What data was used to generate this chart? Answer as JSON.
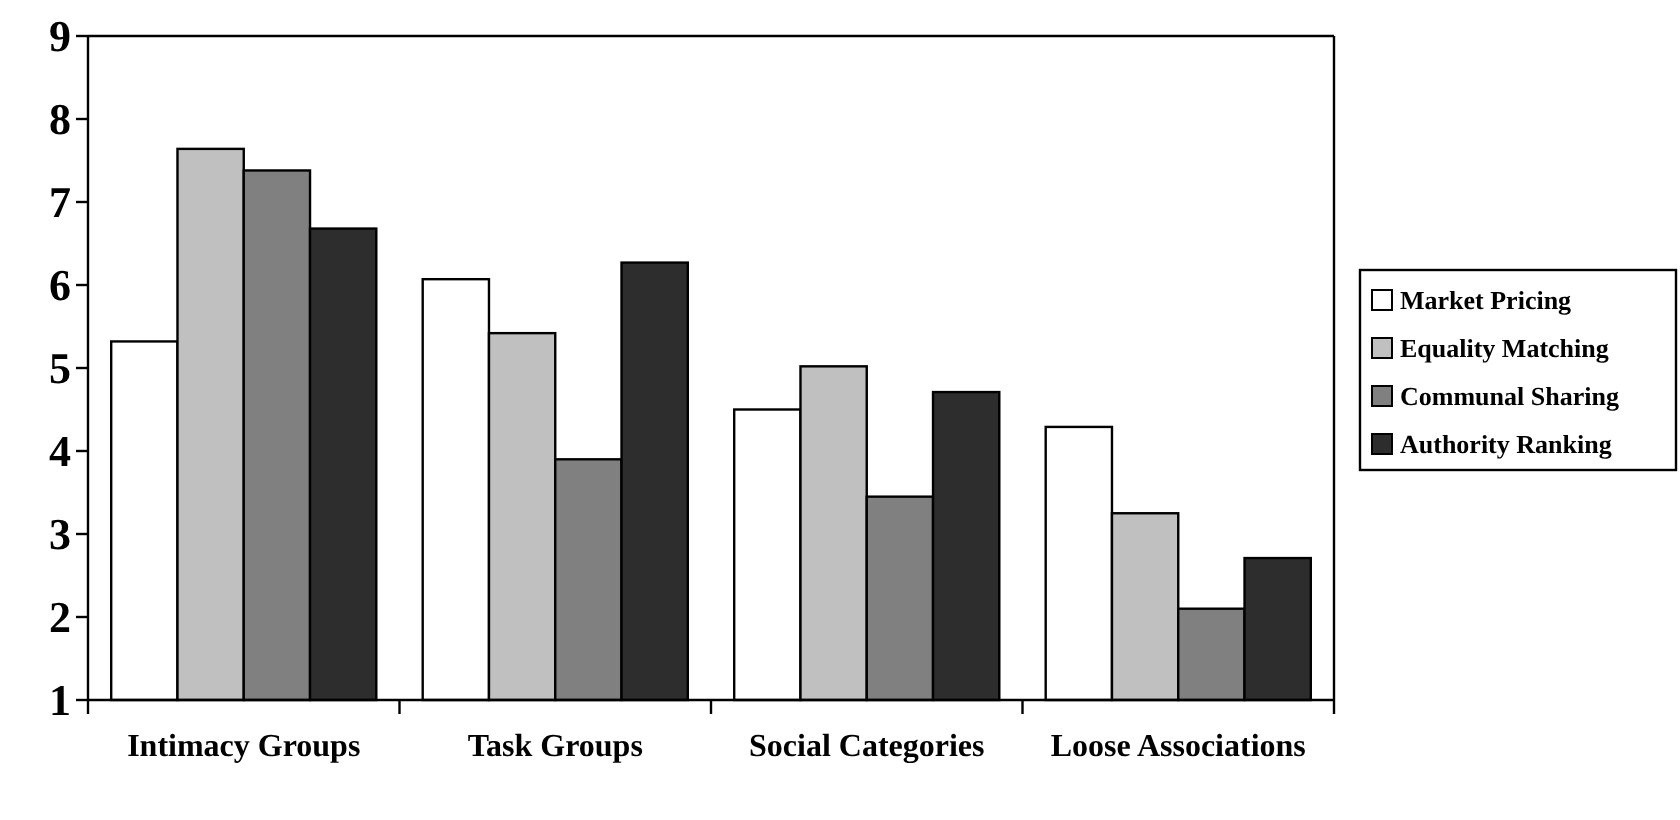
{
  "chart_data": {
    "type": "bar",
    "categories": [
      "Intimacy Groups",
      "Task Groups",
      "Social Categories",
      "Loose Associations"
    ],
    "series": [
      {
        "name": "Market Pricing",
        "color": "#ffffff",
        "values": [
          5.32,
          6.07,
          4.5,
          4.29
        ]
      },
      {
        "name": "Equality Matching",
        "color": "#c0c0c0",
        "values": [
          7.64,
          5.42,
          5.02,
          3.25
        ]
      },
      {
        "name": "Communal Sharing",
        "color": "#808080",
        "values": [
          7.38,
          3.9,
          3.45,
          2.1
        ]
      },
      {
        "name": "Authority Ranking",
        "color": "#2d2d2d",
        "values": [
          6.68,
          6.27,
          4.71,
          2.71
        ]
      }
    ],
    "ylim": [
      1,
      9
    ],
    "yticks": [
      1,
      2,
      3,
      4,
      5,
      6,
      7,
      8,
      9
    ],
    "grid": false,
    "legend": "right"
  }
}
